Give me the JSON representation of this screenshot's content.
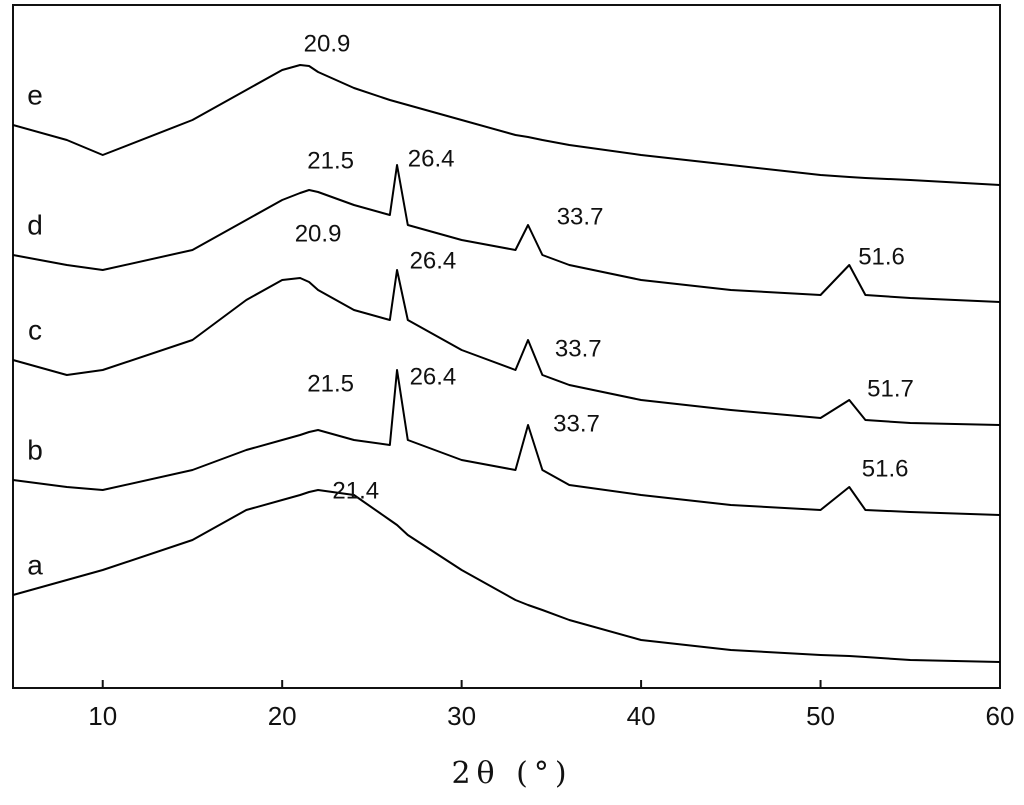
{
  "chart_data": {
    "type": "line",
    "xlabel": "2θ (°)",
    "x": [
      5,
      8,
      10,
      15,
      18,
      20,
      21,
      21.5,
      22,
      24,
      26,
      26.4,
      27,
      30,
      33,
      33.7,
      34.5,
      36,
      40,
      45,
      50,
      51.6,
      52.5,
      55,
      60
    ],
    "series": [
      {
        "name": "a",
        "color": "#000000",
        "values": [
          93,
          108,
          118,
          148,
          178,
          188,
          193,
          196,
          198,
          193,
          168,
          163,
          153,
          118,
          88,
          83,
          78,
          68,
          48,
          38,
          33,
          32,
          31,
          28,
          26
        ]
      },
      {
        "name": "b",
        "color": "#000000",
        "values": [
          208,
          201,
          198,
          218,
          238,
          248,
          253,
          256,
          258,
          248,
          243,
          318,
          248,
          228,
          218,
          263,
          218,
          203,
          193,
          183,
          178,
          201,
          178,
          176,
          173
        ]
      },
      {
        "name": "c",
        "color": "#000000",
        "values": [
          328,
          313,
          318,
          348,
          388,
          408,
          410,
          406,
          398,
          378,
          368,
          418,
          368,
          338,
          318,
          348,
          313,
          303,
          288,
          278,
          270,
          288,
          268,
          265,
          263
        ]
      },
      {
        "name": "d",
        "color": "#000000",
        "values": [
          433,
          423,
          418,
          438,
          468,
          488,
          495,
          498,
          496,
          483,
          473,
          523,
          463,
          448,
          438,
          463,
          433,
          423,
          408,
          398,
          393,
          423,
          393,
          390,
          386
        ]
      },
      {
        "name": "e",
        "color": "#000000",
        "values": [
          563,
          548,
          533,
          568,
          598,
          618,
          623,
          622,
          616,
          600,
          588,
          586,
          583,
          568,
          553,
          551,
          548,
          543,
          533,
          523,
          513,
          511,
          510,
          508,
          503
        ]
      }
    ],
    "annotations": [
      {
        "text": "20.9",
        "x": 22.5,
        "y": 643
      },
      {
        "text": "21.5",
        "x": 22.7,
        "y": 526
      },
      {
        "text": "26.4",
        "x": 28.3,
        "y": 528
      },
      {
        "text": "33.7",
        "x": 36.6,
        "y": 470
      },
      {
        "text": "51.6",
        "x": 53.4,
        "y": 430
      },
      {
        "text": "20.9",
        "x": 22.0,
        "y": 453
      },
      {
        "text": "26.4",
        "x": 28.4,
        "y": 426
      },
      {
        "text": "33.7",
        "x": 36.5,
        "y": 338
      },
      {
        "text": "51.7",
        "x": 53.9,
        "y": 298
      },
      {
        "text": "21.5",
        "x": 22.7,
        "y": 303
      },
      {
        "text": "26.4",
        "x": 28.4,
        "y": 310
      },
      {
        "text": "33.7",
        "x": 36.4,
        "y": 263
      },
      {
        "text": "51.6",
        "x": 53.6,
        "y": 218
      },
      {
        "text": "21.4",
        "x": 24.1,
        "y": 196
      }
    ],
    "xlim": [
      5,
      60
    ],
    "xticks": [
      10,
      20,
      30,
      40,
      50,
      60
    ],
    "ylim": [
      0,
      683
    ]
  }
}
